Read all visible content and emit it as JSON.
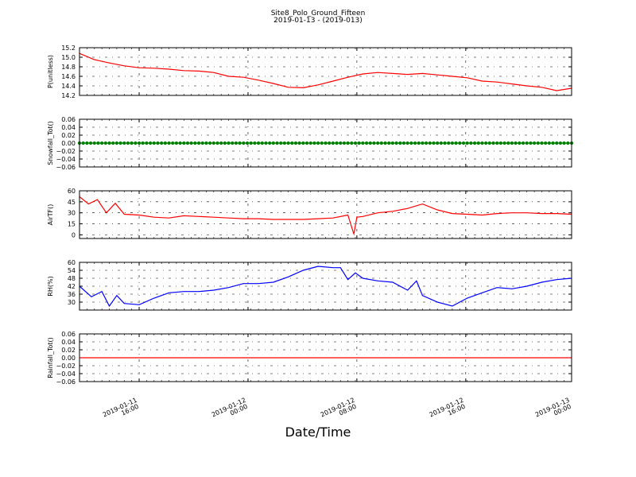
{
  "title": "Site8_Polo_Ground_Fifteen",
  "subtitle": "2019-01-13 - (2019-013)",
  "xlabel": "Date/Time",
  "chart_data": [
    {
      "type": "line",
      "ylabel": "P(unitless)",
      "ylim": [
        14.2,
        15.2
      ],
      "yticks": [
        14.2,
        14.4,
        14.6,
        14.8,
        15.0,
        15.2
      ],
      "ytick_labels": [
        "14.2",
        "14.4",
        "14.6",
        "14.8",
        "15.0",
        "15.2"
      ],
      "color": "#ff0000",
      "marker": false,
      "xlim": [
        0,
        33
      ],
      "x": [
        0,
        1,
        2,
        3,
        4,
        5,
        6,
        7,
        8,
        9,
        10,
        11,
        12,
        13,
        14,
        15,
        16,
        17,
        18,
        19,
        20,
        21,
        22,
        23,
        24,
        25,
        26,
        27,
        28,
        29,
        30,
        31,
        32,
        33
      ],
      "values": [
        15.08,
        14.95,
        14.88,
        14.82,
        14.78,
        14.77,
        14.75,
        14.72,
        14.71,
        14.68,
        14.6,
        14.58,
        14.52,
        14.45,
        14.37,
        14.36,
        14.42,
        14.5,
        14.58,
        14.65,
        14.68,
        14.66,
        14.64,
        14.66,
        14.63,
        14.6,
        14.57,
        14.5,
        14.48,
        14.44,
        14.4,
        14.37,
        14.3,
        14.35
      ]
    },
    {
      "type": "scatter",
      "ylabel": "Snowfall_Tot()",
      "ylim": [
        -0.06,
        0.06
      ],
      "yticks": [
        -0.06,
        -0.04,
        -0.02,
        0.0,
        0.02,
        0.04,
        0.06
      ],
      "ytick_labels": [
        "−0.06",
        "−0.04",
        "−0.02",
        "0.00",
        "0.02",
        "0.04",
        "0.06"
      ],
      "color": "#008000",
      "marker": true,
      "xlim": [
        0,
        33
      ],
      "x": [
        0,
        1,
        2,
        3,
        4,
        5,
        6,
        7,
        8,
        9,
        10,
        11,
        12,
        13,
        14,
        15,
        16,
        17,
        18,
        19,
        20,
        21,
        22,
        23,
        24,
        25,
        26,
        27,
        28,
        29,
        30,
        31,
        32,
        33
      ],
      "values": [
        0,
        0,
        0,
        0,
        0,
        0,
        0,
        0,
        0,
        0,
        0,
        0,
        0,
        0,
        0,
        0,
        0,
        0,
        0,
        0,
        0,
        0,
        0,
        0,
        0,
        0,
        0,
        0,
        0,
        0,
        0,
        0,
        0,
        0
      ]
    },
    {
      "type": "line",
      "ylabel": "AirTF()",
      "ylim": [
        -5,
        60
      ],
      "yticks": [
        0,
        15,
        30,
        45,
        60
      ],
      "ytick_labels": [
        "0",
        "15",
        "30",
        "45",
        "60"
      ],
      "color": "#ff0000",
      "marker": false,
      "xlim": [
        0,
        33
      ],
      "x": [
        0,
        0.6,
        1.2,
        1.8,
        2.4,
        3,
        4,
        5,
        6,
        7,
        8,
        9,
        10,
        11,
        12,
        13,
        14,
        15,
        16,
        17,
        18,
        18.4,
        18.6,
        19,
        20,
        21,
        22,
        23,
        24,
        25,
        26,
        27,
        28,
        29,
        30,
        31,
        32,
        33
      ],
      "values": [
        52,
        42,
        48,
        30,
        43,
        28,
        27,
        24,
        23,
        26,
        25,
        24,
        23,
        22,
        22,
        21,
        21,
        21,
        22,
        23,
        27,
        1,
        24,
        25,
        30,
        32,
        36,
        42,
        34,
        29,
        28,
        27,
        29,
        30,
        30,
        29,
        29,
        28
      ]
    },
    {
      "type": "line",
      "ylabel": "RH(%)",
      "ylim": [
        24,
        60
      ],
      "yticks": [
        30,
        36,
        42,
        48,
        54,
        60
      ],
      "ytick_labels": [
        "30",
        "36",
        "42",
        "48",
        "54",
        "60"
      ],
      "color": "#0000ff",
      "marker": false,
      "xlim": [
        0,
        33
      ],
      "x": [
        0,
        0.8,
        1.5,
        2,
        2.5,
        3,
        4,
        5,
        6,
        7,
        8,
        9,
        10,
        11,
        12,
        13,
        14,
        15,
        16,
        17,
        17.5,
        18,
        18.5,
        19,
        20,
        21,
        22,
        22.6,
        23,
        24,
        25,
        26,
        27,
        28,
        29,
        30,
        31,
        32,
        33
      ],
      "values": [
        42,
        34,
        38,
        27,
        35,
        29,
        28,
        33,
        37,
        38,
        38,
        39,
        41,
        44,
        44,
        45,
        49,
        54,
        57,
        56,
        56,
        47,
        52,
        48,
        46,
        45,
        39,
        46,
        35,
        30,
        27,
        33,
        37,
        41,
        40,
        42,
        45,
        47,
        48
      ]
    },
    {
      "type": "line",
      "ylabel": "Rainfall_Tot()",
      "ylim": [
        -0.06,
        0.06
      ],
      "yticks": [
        -0.06,
        -0.04,
        -0.02,
        0.0,
        0.02,
        0.04,
        0.06
      ],
      "ytick_labels": [
        "−0.06",
        "−0.04",
        "−0.02",
        "0.00",
        "0.02",
        "0.04",
        "0.06"
      ],
      "color": "#ff0000",
      "marker": false,
      "xlim": [
        0,
        33
      ],
      "x": [
        0,
        33
      ],
      "values": [
        0,
        0
      ]
    }
  ],
  "xticks": [
    {
      "pos": 4,
      "line1": "2019-01-11",
      "line2": "16:00"
    },
    {
      "pos": 11.3,
      "line1": "2019-01-12",
      "line2": "00:00"
    },
    {
      "pos": 18.6,
      "line1": "2019-01-12",
      "line2": "08:00"
    },
    {
      "pos": 25.9,
      "line1": "2019-01-12",
      "line2": "16:00"
    },
    {
      "pos": 33,
      "line1": "2019-01-13",
      "line2": "00:00"
    }
  ],
  "grid": true
}
